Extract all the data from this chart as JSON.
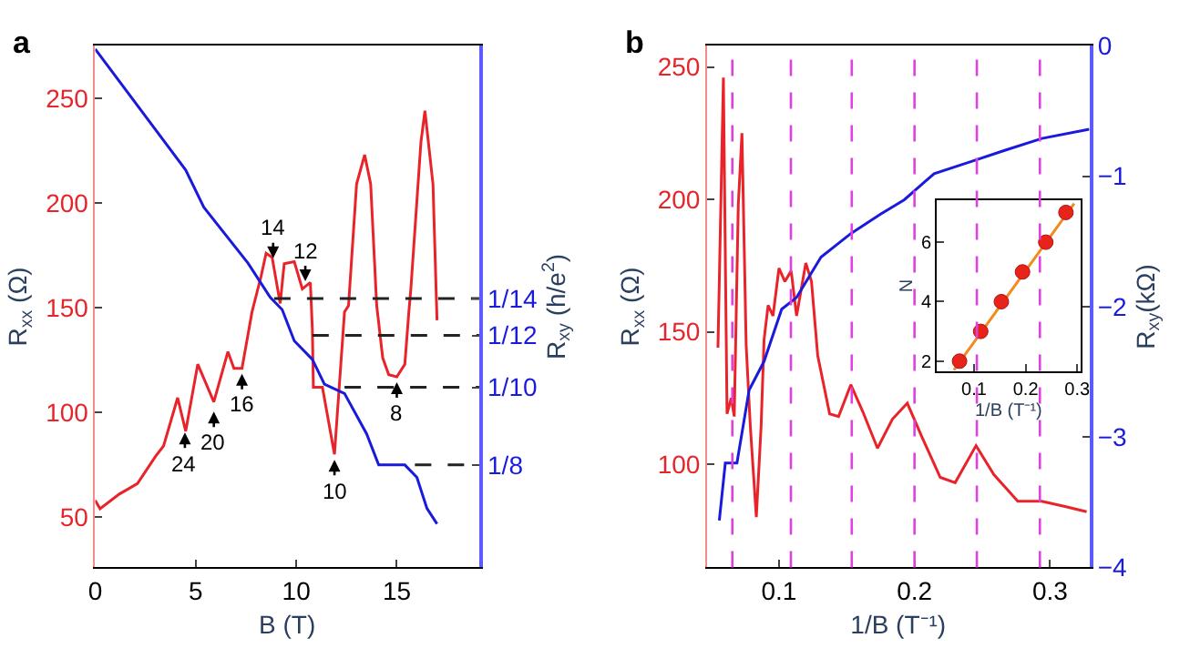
{
  "chart_data": [
    {
      "type": "line",
      "title": "a",
      "xlabel": "B (T)",
      "ylabel": "R$_{xx}$ (Ω)",
      "y2label": "R$_{xy}$ (h/e$^{2}$)",
      "xlim": [
        0,
        19.1
      ],
      "xticks": [
        0,
        5,
        10,
        15
      ],
      "ylim": [
        26,
        275
      ],
      "yticks": [
        50,
        100,
        150,
        200,
        250
      ],
      "y2lim": [
        0.158,
        -0.01
      ],
      "y2ticks": [
        {
          "value": 0.0714,
          "label": "1/14"
        },
        {
          "value": 0.0833,
          "label": "1/12"
        },
        {
          "value": 0.1,
          "label": "1/10"
        },
        {
          "value": 0.125,
          "label": "1/8"
        }
      ],
      "series": [
        {
          "color": "#e8242a",
          "x": [
            0,
            0.24,
            1.2,
            2.1,
            3.0,
            3.4,
            4.1,
            4.5,
            5.1,
            5.9,
            6.6,
            6.9,
            7.3,
            7.8,
            8.25,
            8.5,
            8.8,
            9.2,
            9.4,
            9.9,
            10.3,
            10.7,
            10.8,
            10.85,
            11.3,
            11.9,
            12.4,
            12.6,
            13.0,
            13.4,
            13.7,
            14.0,
            14.3,
            14.6,
            15.0,
            15.4,
            15.6,
            15.7,
            16.2,
            16.4,
            16.8,
            17.0
          ],
          "values": [
            58,
            54,
            61,
            66,
            79,
            84,
            107,
            91,
            123,
            105,
            129,
            121,
            121,
            148,
            165,
            176,
            174,
            152,
            171,
            172,
            159,
            162,
            140,
            112,
            112,
            80,
            148,
            151,
            209,
            223,
            209,
            151,
            126,
            118,
            117,
            123,
            148,
            159,
            229,
            244,
            209,
            144
          ]
        },
        {
          "color": "#1a1adc",
          "axis": "y2",
          "x": [
            0,
            4.5,
            5.4,
            7.6,
            8.7,
            9.3,
            9.9,
            10.8,
            11.4,
            12.4,
            13.5,
            14.1,
            15.4,
            16.0,
            16.5,
            17.0
          ],
          "values": [
            -0.009,
            0.03,
            0.042,
            0.06,
            0.071,
            0.075,
            0.085,
            0.091,
            0.099,
            0.102,
            0.115,
            0.125,
            0.125,
            0.129,
            0.139,
            0.144
          ]
        },
        {
          "color": "#222222",
          "axis": "y2",
          "line_style": "dashed",
          "x": [
            8.9,
            19.1
          ],
          "values": [
            0.0714,
            0.0714
          ]
        },
        {
          "color": "#222222",
          "axis": "y2",
          "line_style": "dashed",
          "x": [
            10.8,
            19.1
          ],
          "values": [
            0.0833,
            0.0833
          ]
        },
        {
          "color": "#222222",
          "axis": "y2",
          "line_style": "dashed",
          "x": [
            12.4,
            19.1
          ],
          "values": [
            0.1,
            0.1
          ]
        },
        {
          "color": "#222222",
          "axis": "y2",
          "line_style": "dashed",
          "x": [
            15.9,
            19.1
          ],
          "values": [
            0.125,
            0.125
          ]
        }
      ],
      "annotations": [
        {
          "text": "24",
          "x": 4.46,
          "y": 93
        },
        {
          "text": "20",
          "x": 5.9,
          "y": 103
        },
        {
          "text": "16",
          "x": 7.3,
          "y": 121
        },
        {
          "text": "14",
          "x": 8.85,
          "y": 171
        },
        {
          "text": "12",
          "x": 10.45,
          "y": 160
        },
        {
          "text": "10",
          "x": 11.9,
          "y": 80
        },
        {
          "text": "8",
          "x": 15.0,
          "y": 117
        }
      ]
    },
    {
      "type": "line",
      "title": "b",
      "xlabel": "1/B (T⁻¹)",
      "ylabel": "R$_{xx}$ (Ω)",
      "y2label": "R$_{xy}$(kΩ)",
      "xlim": [
        0.047,
        0.329
      ],
      "xticks": [
        0.1,
        0.2,
        0.3
      ],
      "ylim": [
        61,
        258
      ],
      "yticks": [
        100,
        150,
        200,
        250
      ],
      "y2lim": [
        -4,
        0
      ],
      "y2ticks": [
        0,
        {
          "value": -1,
          "label": "−1"
        },
        {
          "value": -2,
          "label": "−2"
        },
        {
          "value": -3,
          "label": "−3"
        },
        {
          "value": -4,
          "label": "−4"
        }
      ],
      "series": [
        {
          "color": "#e8242a",
          "x": [
            0.055,
            0.059,
            0.0617,
            0.0648,
            0.067,
            0.07,
            0.0727,
            0.0758,
            0.0789,
            0.0833,
            0.0868,
            0.089,
            0.092,
            0.0956,
            0.1,
            0.1044,
            0.109,
            0.113,
            0.1198,
            0.124,
            0.1286,
            0.1374,
            0.144,
            0.153,
            0.1617,
            0.1727,
            0.1837,
            0.1947,
            0.2057,
            0.219,
            0.23,
            0.2454,
            0.2586,
            0.2762,
            0.2938,
            0.311,
            0.327
          ],
          "values": [
            144,
            246,
            119,
            125,
            118,
            198,
            225,
            145,
            114,
            80,
            114,
            147,
            160,
            156,
            174,
            169,
            173,
            156,
            176,
            169,
            141,
            119,
            118,
            130,
            120,
            106,
            117,
            123,
            110,
            95,
            93,
            107,
            96,
            86,
            86,
            84,
            82
          ]
        },
        {
          "color": "#1a1adc",
          "axis": "y2",
          "x": [
            0.056,
            0.0604,
            0.069,
            0.078,
            0.089,
            0.102,
            0.113,
            0.131,
            0.153,
            0.175,
            0.1925,
            0.2145,
            0.241,
            0.267,
            0.294,
            0.329
          ],
          "values": [
            -3.64,
            -3.2,
            -3.2,
            -2.64,
            -2.42,
            -2.02,
            -1.93,
            -1.62,
            -1.44,
            -1.29,
            -1.18,
            -0.98,
            -0.89,
            -0.8,
            -0.71,
            -0.64
          ]
        }
      ],
      "ref_lines": [
        {
          "axis": "x",
          "value": 0.0656,
          "color": "#e040e0",
          "line_style": "dashed"
        },
        {
          "axis": "x",
          "value": 0.1088,
          "color": "#e040e0",
          "line_style": "dashed"
        },
        {
          "axis": "x",
          "value": 0.1537,
          "color": "#e040e0",
          "line_style": "dashed"
        },
        {
          "axis": "x",
          "value": 0.2,
          "color": "#e040e0",
          "line_style": "dashed"
        },
        {
          "axis": "x",
          "value": 0.246,
          "color": "#e040e0",
          "line_style": "dashed"
        },
        {
          "axis": "x",
          "value": 0.2925,
          "color": "#e040e0",
          "line_style": "dashed"
        }
      ]
    },
    {
      "type": "line",
      "xlabel": "1/B (T⁻¹)",
      "ylabel": "N",
      "xlim": [
        0.028,
        0.306
      ],
      "xticks": [
        0.1,
        0.2,
        0.3
      ],
      "ylim": [
        1.67,
        7.4
      ],
      "yticks": [
        2,
        4,
        6
      ],
      "series": [
        {
          "color": "#f08c1e",
          "x": [
            0.061,
            0.294
          ],
          "values": [
            1.7,
            7.3
          ]
        },
        {
          "type": "scatter",
          "color": "#e8241a",
          "marker": "circle",
          "x": [
            0.072,
            0.113,
            0.153,
            0.194,
            0.239,
            0.278
          ],
          "values": [
            2,
            3,
            4,
            5,
            6,
            7
          ]
        }
      ]
    }
  ]
}
